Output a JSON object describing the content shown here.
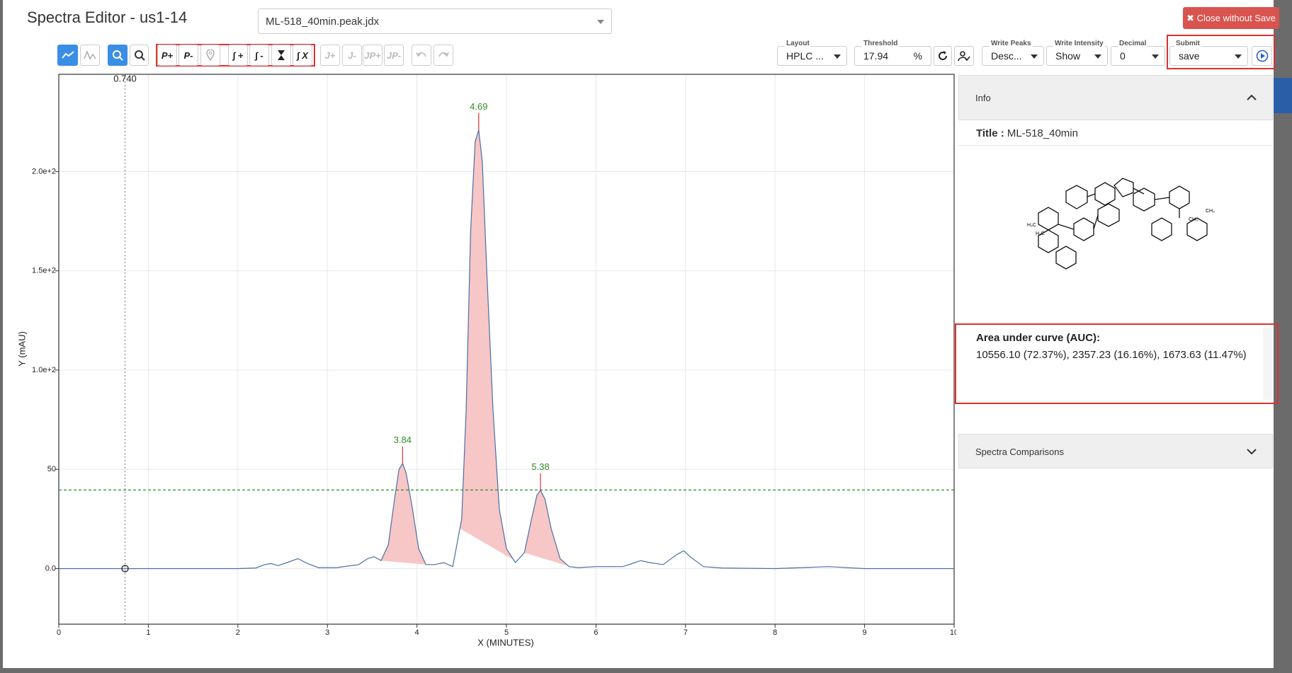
{
  "header": {
    "title": "Spectra Editor - us1-14",
    "file": "ML-518_40min.peak.jdx",
    "close_button": "Close without Save"
  },
  "toolbar": {
    "buttons": [
      "P+",
      "P-",
      "∫ +",
      "∫ -",
      "∫ X",
      "J+",
      "J-",
      "JP+",
      "JP-"
    ],
    "controls": [
      {
        "label": "Layout",
        "value": "HPLC ..."
      },
      {
        "label": "Threshold",
        "value": "17.94",
        "unit": "%"
      },
      {
        "label": "Write Peaks",
        "value": "Desc..."
      },
      {
        "label": "Write Intensity",
        "value": "Show"
      },
      {
        "label": "Decimal",
        "value": "0"
      },
      {
        "label": "Submit",
        "value": "save"
      }
    ]
  },
  "chart_data": {
    "type": "line",
    "x_label": "X (MINUTES)",
    "y_label": "Y (mAU)",
    "color": "#4a6fa5",
    "x": [
      0,
      0.5,
      1,
      1.5,
      2,
      2.2,
      2.3,
      2.37,
      2.45,
      2.55,
      2.67,
      2.78,
      2.9,
      3.1,
      3.35,
      3.45,
      3.52,
      3.6,
      3.68,
      3.75,
      3.8,
      3.84,
      3.88,
      3.95,
      4.02,
      4.1,
      4.2,
      4.3,
      4.4,
      4.5,
      4.55,
      4.6,
      4.65,
      4.69,
      4.73,
      4.78,
      4.85,
      4.92,
      5.0,
      5.1,
      5.2,
      5.28,
      5.34,
      5.38,
      5.43,
      5.5,
      5.6,
      5.7,
      5.8,
      6.0,
      6.3,
      6.5,
      6.6,
      6.75,
      6.9,
      6.98,
      7.05,
      7.2,
      7.4,
      8.0,
      8.6,
      9.0,
      10
    ],
    "values": [
      0,
      0,
      0,
      0,
      0,
      0.3,
      2,
      2.5,
      1.5,
      3,
      5,
      2.5,
      0.5,
      0.5,
      2,
      5,
      6,
      4,
      12,
      35,
      50,
      53,
      48,
      30,
      10,
      2,
      2,
      3,
      1,
      25,
      80,
      170,
      215,
      221,
      205,
      150,
      80,
      30,
      10,
      3,
      8,
      25,
      37,
      39.5,
      35,
      20,
      5,
      1,
      0.5,
      1,
      1,
      4,
      3,
      2,
      7,
      9,
      6,
      1,
      0.3,
      0,
      1,
      0,
      0
    ],
    "xlim": [
      0,
      10
    ],
    "xticks": [
      0,
      1,
      2,
      3,
      4,
      5,
      6,
      7,
      8,
      9,
      10
    ],
    "ylim": [
      -28,
      249
    ],
    "yticks": [
      {
        "value": 0,
        "label": "0.0"
      },
      50,
      {
        "value": 100,
        "label": "1.0e+2"
      },
      {
        "value": 150,
        "label": "1.5e+2"
      },
      {
        "value": 200,
        "label": "2.0e+2"
      }
    ],
    "grid": true,
    "peaks": [
      {
        "x": 3.84,
        "y": 53
      },
      {
        "x": 4.69,
        "y": 221
      },
      {
        "x": 5.38,
        "y": 39.5
      }
    ],
    "peak_color": "#2e8b2e",
    "integrations": [
      [
        3.6,
        4.12
      ],
      [
        4.48,
        5.08
      ],
      [
        5.2,
        5.72
      ]
    ],
    "integration_color": "#f7c6c6",
    "threshold": 39.6,
    "cursor": {
      "value": 0.74,
      "label": "0.740"
    }
  },
  "info_panel": {
    "title": "Info",
    "title_label": "Title :",
    "title_value": "ML-518_40min",
    "molecule_labels": [
      "H₃C",
      "H₃C",
      "CH₃",
      "CH₃"
    ],
    "auc_title": "Area under curve (AUC):",
    "auc_text": "10556.10 (72.37%), 2357.23 (16.16%), 1673.63 (11.47%)",
    "comparisons": "Spectra Comparisons"
  }
}
